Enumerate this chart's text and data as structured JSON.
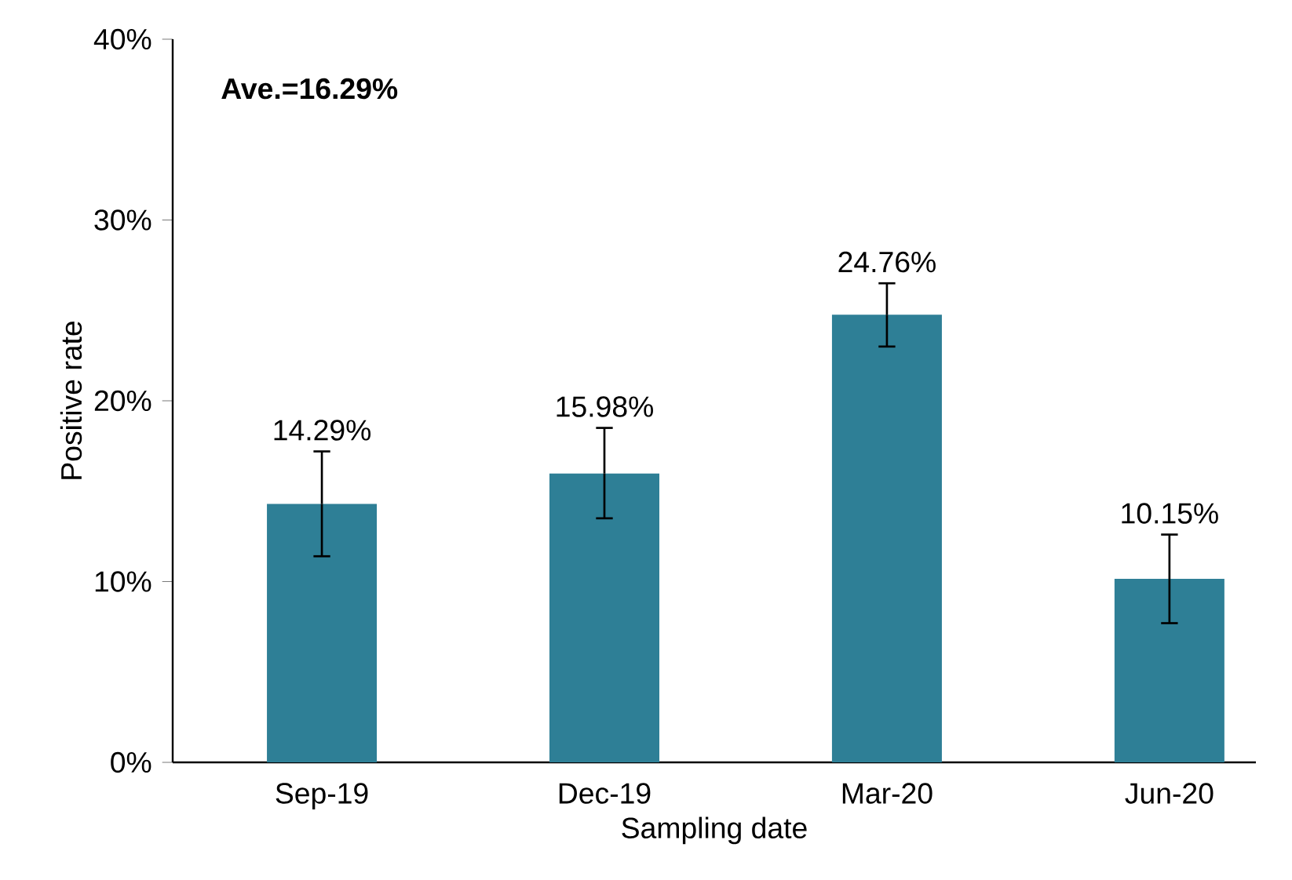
{
  "chart_data": {
    "type": "bar",
    "xlabel": "Sampling date",
    "ylabel": "Positive rate",
    "categories": [
      "Sep-19",
      "Dec-19",
      "Mar-20",
      "Jun-20"
    ],
    "values": [
      14.29,
      15.98,
      24.76,
      10.15
    ],
    "value_labels": [
      "14.29%",
      "15.98%",
      "24.76%",
      "10.15%"
    ],
    "errors": [
      [
        11.4,
        17.2
      ],
      [
        13.5,
        18.5
      ],
      [
        23.0,
        26.5
      ],
      [
        7.7,
        12.6
      ]
    ],
    "color": "#2e7f96",
    "ylim": [
      0,
      40
    ],
    "yticks": [
      {
        "value": 0,
        "label": "0%"
      },
      {
        "value": 10,
        "label": "10%"
      },
      {
        "value": 20,
        "label": "20%"
      },
      {
        "value": 30,
        "label": "30%"
      },
      {
        "value": 40,
        "label": "40%"
      }
    ],
    "annotations": [
      "Ave.=16.29%"
    ],
    "grid": false
  }
}
